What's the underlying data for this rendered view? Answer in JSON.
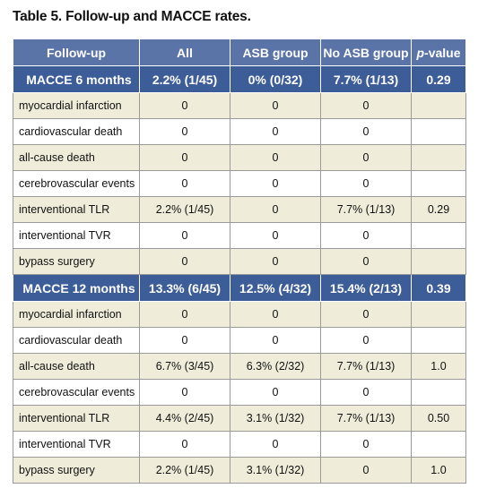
{
  "title": "Table 5. Follow-up and MACCE rates.",
  "header": {
    "followup": "Follow-up",
    "all": "All",
    "asb": "ASB group",
    "noasb": "No  ASB group",
    "pvalue_italic": "p",
    "pvalue_rest": "-value"
  },
  "colors": {
    "header_bg": "#5b74a8",
    "section_bg": "#3d5d99",
    "band_bg": "#efedda"
  },
  "sections": [
    {
      "label": "MACCE 6 months",
      "all": "2.2% (1/45)",
      "asb": "0% (0/32)",
      "noasb": "7.7% (1/13)",
      "p": "0.29",
      "rows": [
        {
          "label": "myocardial infarction",
          "all": "0",
          "asb": "0",
          "noasb": "0",
          "p": ""
        },
        {
          "label": "cardiovascular death",
          "all": "0",
          "asb": "0",
          "noasb": "0",
          "p": ""
        },
        {
          "label": "all-cause death",
          "all": "0",
          "asb": "0",
          "noasb": "0",
          "p": ""
        },
        {
          "label": "cerebrovascular events",
          "all": "0",
          "asb": "0",
          "noasb": "0",
          "p": ""
        },
        {
          "label": "interventional TLR",
          "all": "2.2% (1/45)",
          "asb": "0",
          "noasb": "7.7% (1/13)",
          "p": "0.29"
        },
        {
          "label": "interventional TVR",
          "all": "0",
          "asb": "0",
          "noasb": "0",
          "p": ""
        },
        {
          "label": "bypass surgery",
          "all": "0",
          "asb": "0",
          "noasb": "0",
          "p": ""
        }
      ]
    },
    {
      "label": "MACCE 12 months",
      "all": "13.3% (6/45)",
      "asb": "12.5% (4/32)",
      "noasb": "15.4% (2/13)",
      "p": "0.39",
      "rows": [
        {
          "label": "myocardial infarction",
          "all": "0",
          "asb": "0",
          "noasb": "0",
          "p": ""
        },
        {
          "label": "cardiovascular death",
          "all": "0",
          "asb": "0",
          "noasb": "0",
          "p": ""
        },
        {
          "label": "all-cause death",
          "all": "6.7% (3/45)",
          "asb": "6.3% (2/32)",
          "noasb": "7.7% (1/13)",
          "p": "1.0"
        },
        {
          "label": "cerebrovascular events",
          "all": "0",
          "asb": "0",
          "noasb": "0",
          "p": ""
        },
        {
          "label": "interventional TLR",
          "all": "4.4% (2/45)",
          "asb": "3.1% (1/32)",
          "noasb": "7.7% (1/13)",
          "p": "0.50"
        },
        {
          "label": "interventional TVR",
          "all": "0",
          "asb": "0",
          "noasb": "0",
          "p": ""
        },
        {
          "label": "bypass surgery",
          "all": "2.2% (1/45)",
          "asb": "3.1% (1/32)",
          "noasb": "0",
          "p": "1.0"
        }
      ]
    }
  ]
}
